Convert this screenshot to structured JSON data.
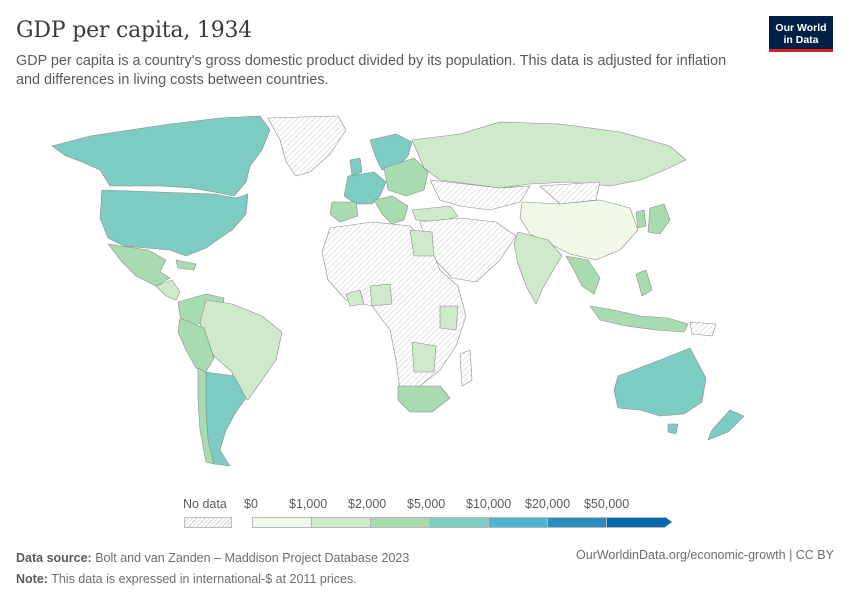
{
  "header": {
    "title": "GDP per capita, 1934",
    "subtitle": "GDP per capita is a country's gross domestic product divided by its population. This data is adjusted for inflation and differences in living costs between countries.",
    "logo_line1": "Our World",
    "logo_line2": "in Data"
  },
  "legend": {
    "no_data_label": "No data",
    "bins": [
      {
        "label": "$0",
        "color": "#f0f9e8"
      },
      {
        "label": "$1,000",
        "color": "#cfeacb"
      },
      {
        "label": "$2,000",
        "color": "#a8dcb0"
      },
      {
        "label": "$5,000",
        "color": "#7dccc3"
      },
      {
        "label": "$10,000",
        "color": "#4fb3d3"
      },
      {
        "label": "$20,000",
        "color": "#2b8cbe"
      },
      {
        "label": "$50,000",
        "color": "#0868ac"
      }
    ],
    "no_data_color": "#d4d4d4"
  },
  "footer": {
    "source_label": "Data source:",
    "source_text": "Bolt and van Zanden – Maddison Project Database 2023",
    "note_label": "Note:",
    "note_text": "This data is expressed in international-$ at 2011 prices.",
    "url": "OurWorldinData.org/economic-growth | CC BY"
  },
  "map_regions": [
    {
      "name": "canada",
      "fill": "teal"
    },
    {
      "name": "united-states",
      "fill": "teal"
    },
    {
      "name": "mexico",
      "fill": "mid-green"
    },
    {
      "name": "central-america",
      "fill": "light-green"
    },
    {
      "name": "south-america-north",
      "fill": "light-green"
    },
    {
      "name": "brazil",
      "fill": "light-green"
    },
    {
      "name": "argentina",
      "fill": "teal"
    },
    {
      "name": "chile",
      "fill": "mid-green"
    },
    {
      "name": "greenland",
      "fill": "no-data"
    },
    {
      "name": "europe-west",
      "fill": "teal"
    },
    {
      "name": "europe-east",
      "fill": "mid-green"
    },
    {
      "name": "russia",
      "fill": "light-green"
    },
    {
      "name": "africa",
      "fill": "no-data"
    },
    {
      "name": "south-africa",
      "fill": "mid-green"
    },
    {
      "name": "middle-east",
      "fill": "no-data"
    },
    {
      "name": "india",
      "fill": "light-green"
    },
    {
      "name": "china",
      "fill": "pale-green"
    },
    {
      "name": "japan",
      "fill": "mid-green"
    },
    {
      "name": "southeast-asia",
      "fill": "mid-green"
    },
    {
      "name": "australia",
      "fill": "teal"
    },
    {
      "name": "new-zealand",
      "fill": "teal"
    }
  ]
}
